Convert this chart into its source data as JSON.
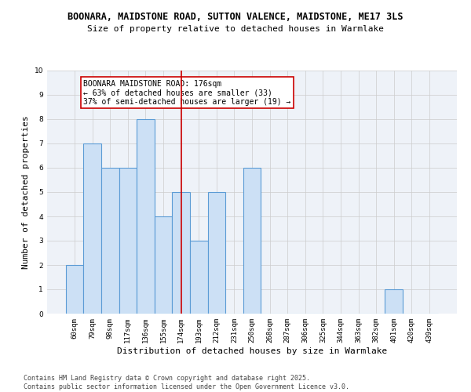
{
  "title_line1": "BOONARA, MAIDSTONE ROAD, SUTTON VALENCE, MAIDSTONE, ME17 3LS",
  "title_line2": "Size of property relative to detached houses in Warmlake",
  "xlabel": "Distribution of detached houses by size in Warmlake",
  "ylabel": "Number of detached properties",
  "categories": [
    "60sqm",
    "79sqm",
    "98sqm",
    "117sqm",
    "136sqm",
    "155sqm",
    "174sqm",
    "193sqm",
    "212sqm",
    "231sqm",
    "250sqm",
    "268sqm",
    "287sqm",
    "306sqm",
    "325sqm",
    "344sqm",
    "363sqm",
    "382sqm",
    "401sqm",
    "420sqm",
    "439sqm"
  ],
  "values": [
    2,
    7,
    6,
    6,
    8,
    4,
    5,
    3,
    5,
    0,
    6,
    0,
    0,
    0,
    0,
    0,
    0,
    0,
    1,
    0,
    0
  ],
  "bar_color": "#cce0f5",
  "bar_edge_color": "#5b9bd5",
  "bar_linewidth": 0.8,
  "vline_x_index": 6,
  "vline_color": "#cc0000",
  "vline_linewidth": 1.2,
  "annotation_text": "BOONARA MAIDSTONE ROAD: 176sqm\n← 63% of detached houses are smaller (33)\n37% of semi-detached houses are larger (19) →",
  "annotation_box_color": "#ffffff",
  "annotation_box_edge_color": "#cc0000",
  "ylim": [
    0,
    10
  ],
  "yticks": [
    0,
    1,
    2,
    3,
    4,
    5,
    6,
    7,
    8,
    9,
    10
  ],
  "grid_color": "#cccccc",
  "background_color": "#eef2f8",
  "footer_text": "Contains HM Land Registry data © Crown copyright and database right 2025.\nContains public sector information licensed under the Open Government Licence v3.0.",
  "title_fontsize": 8.5,
  "subtitle_fontsize": 8,
  "xlabel_fontsize": 8,
  "ylabel_fontsize": 8,
  "tick_fontsize": 6.5,
  "annotation_fontsize": 7,
  "footer_fontsize": 6
}
